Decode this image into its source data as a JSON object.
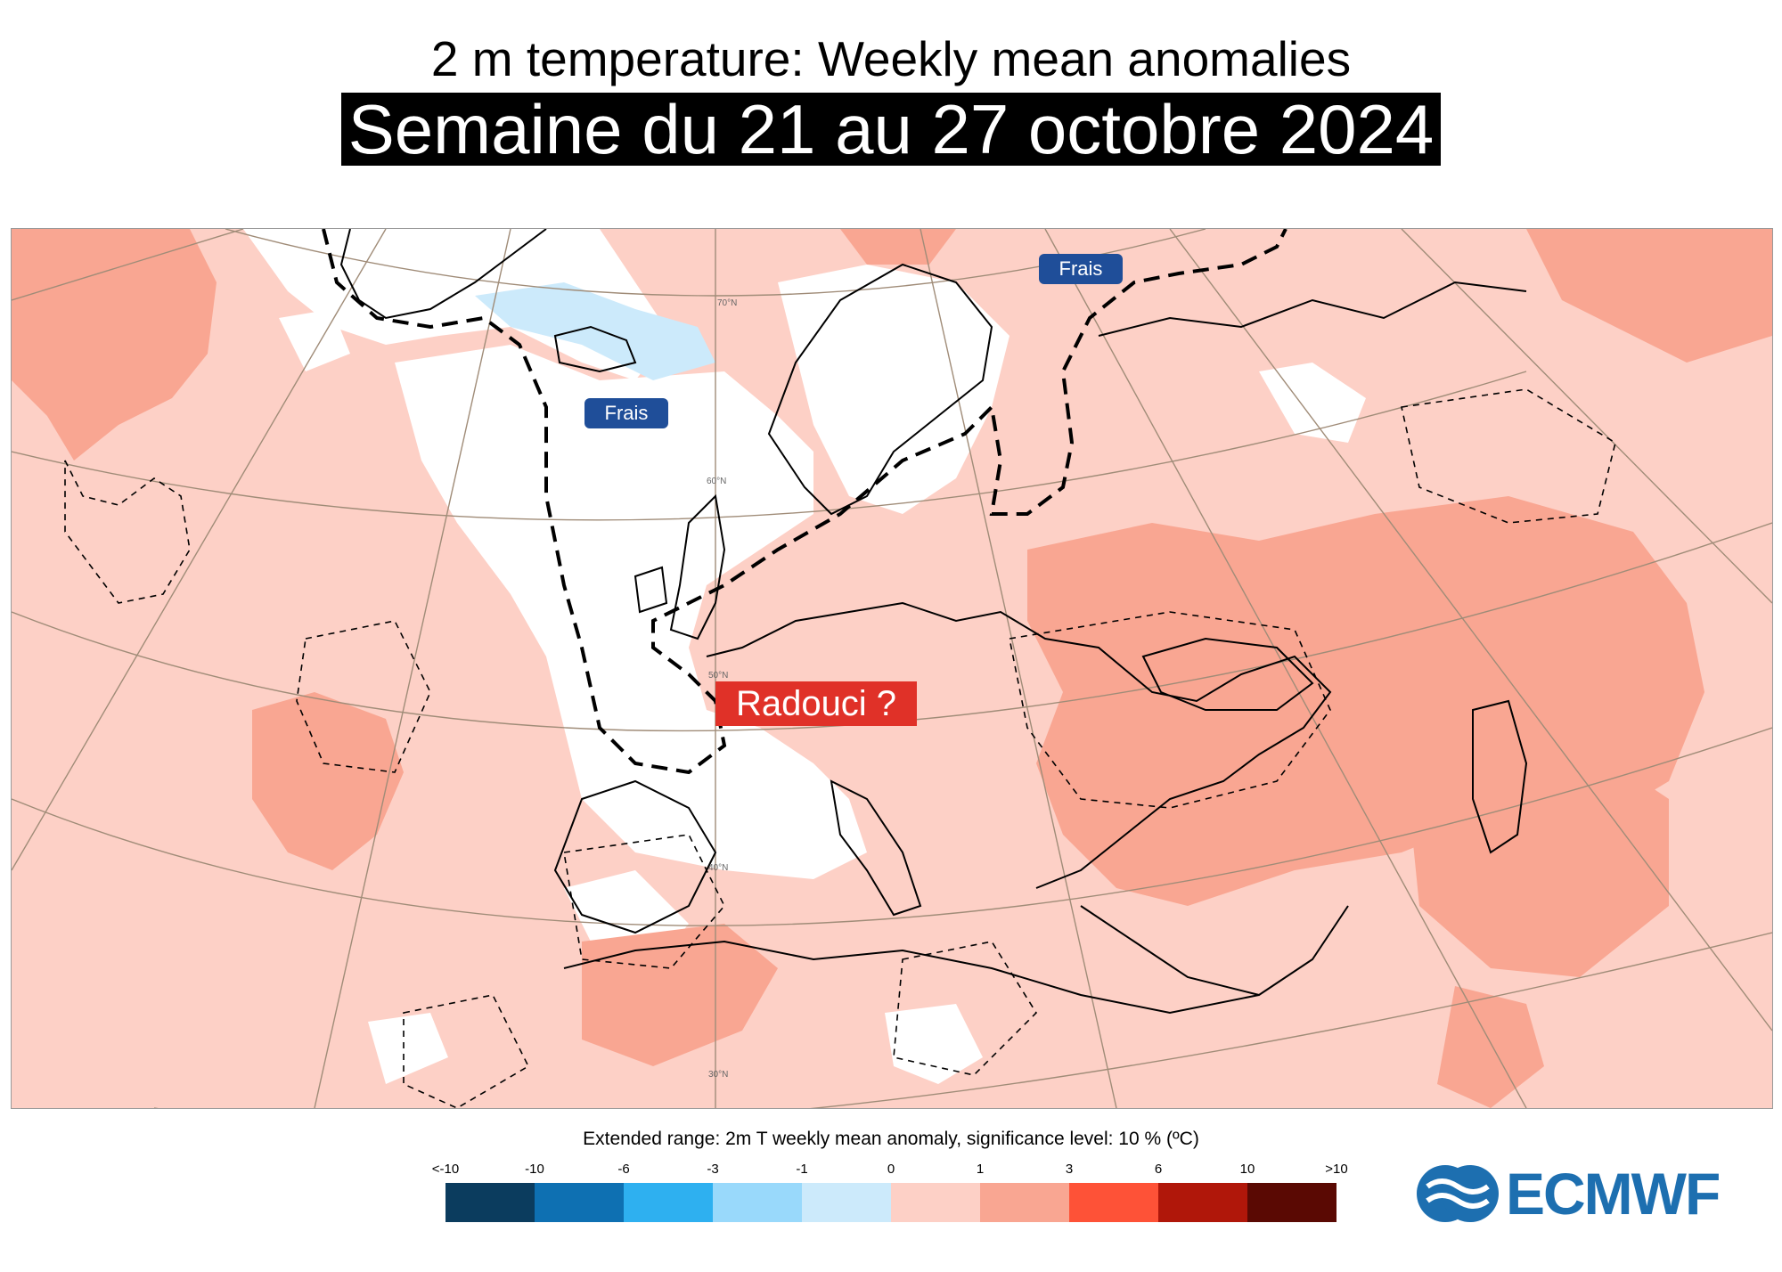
{
  "title": "2 m temperature: Weekly mean anomalies",
  "subtitle": "Semaine du 21 au 27 octobre 2024",
  "map": {
    "labels": {
      "frais_greenland": "Frais",
      "frais_russia": "Frais",
      "radouci": "Radouci ?"
    },
    "latitude_labels": [
      "70°N",
      "60°N",
      "50°N",
      "40°N",
      "30°N"
    ],
    "colors": {
      "white": "#ffffff",
      "light_pink": "#fdd0c6",
      "salmon": "#f9a692",
      "light_blue": "#cceafb",
      "frais_badge": "#1f4e99",
      "radouci_badge": "#e03128"
    }
  },
  "legend": {
    "title": "Extended range: 2m T weekly mean anomaly, significance level: 10 % (ºC)",
    "ticks": [
      "<-10",
      "-10",
      "-6",
      "-3",
      "-1",
      "0",
      "1",
      "3",
      "6",
      "10",
      ">10"
    ],
    "colors": [
      "#0b3c5e",
      "#0e70b2",
      "#2eb0f0",
      "#99d9fb",
      "#cceafb",
      "#fdd0c6",
      "#f9a692",
      "#fe5237",
      "#b0170a",
      "#5a0903"
    ]
  },
  "logo": {
    "text": "ECMWF",
    "color": "#1d6fb0"
  }
}
